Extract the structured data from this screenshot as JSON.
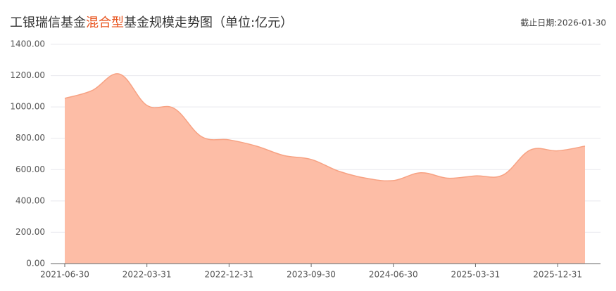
{
  "chart_data": {
    "type": "area",
    "title_parts": [
      "工银瑞信基金",
      "混合型",
      "基金规模走势图（单位:亿元）"
    ],
    "title_highlight_color": "#e8541e",
    "subtitle": "截止日期:2026-01-30",
    "categories": [
      "2021-06-30",
      null,
      null,
      "2022-03-31",
      null,
      null,
      "2022-12-31",
      null,
      null,
      "2023-09-30",
      null,
      null,
      "2024-06-30",
      null,
      null,
      "2025-03-31",
      null,
      null,
      "2025-12-31",
      null
    ],
    "series": [
      {
        "name": "基金规模",
        "color": "#f7a283",
        "fill": "#fdbda6",
        "values": [
          1055,
          1105,
          1210,
          1010,
          990,
          810,
          790,
          750,
          690,
          665,
          590,
          545,
          530,
          580,
          545,
          560,
          565,
          725,
          720,
          750
        ]
      }
    ],
    "ylim": [
      0,
      1400
    ],
    "yticks": [
      {
        "value": 0,
        "label": "0.00"
      },
      {
        "value": 200,
        "label": "200.00"
      },
      {
        "value": 400,
        "label": "400.00"
      },
      {
        "value": 600,
        "label": "600.00"
      },
      {
        "value": 800,
        "label": "800.00"
      },
      {
        "value": 1000,
        "label": "1000.00"
      },
      {
        "value": 1200,
        "label": "1200.00"
      },
      {
        "value": 1400,
        "label": "1400.00"
      }
    ],
    "grid": true
  }
}
